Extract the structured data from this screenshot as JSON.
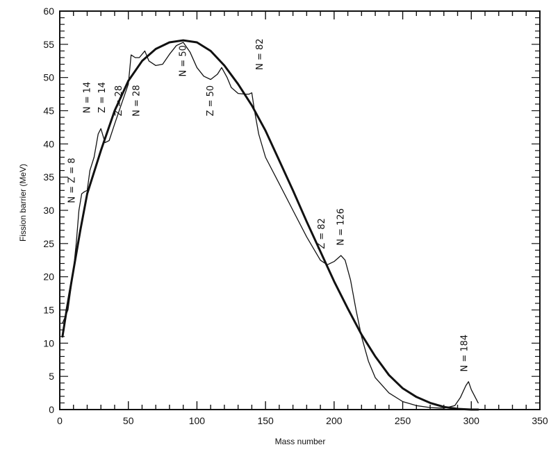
{
  "chart_data": {
    "type": "line",
    "xlabel": "Mass number",
    "ylabel": "Fission barrier (MeV)",
    "xlim": [
      0,
      350
    ],
    "ylim": [
      0,
      60
    ],
    "x_ticks": [
      0,
      50,
      100,
      150,
      200,
      250,
      300,
      350
    ],
    "y_ticks": [
      0,
      5,
      10,
      15,
      20,
      25,
      30,
      35,
      40,
      45,
      50,
      55,
      60
    ],
    "grid": false,
    "series": [
      {
        "style": "thick",
        "x": [
          2,
          5,
          10,
          15,
          20,
          30,
          40,
          50,
          60,
          70,
          80,
          90,
          100,
          110,
          120,
          130,
          140,
          150,
          160,
          170,
          180,
          190,
          200,
          210,
          220,
          230,
          240,
          250,
          260,
          270,
          280,
          290,
          300,
          305
        ],
        "y": [
          11,
          15,
          21,
          27,
          32.5,
          39,
          45,
          49.5,
          52.5,
          54.3,
          55.3,
          55.6,
          55.3,
          54,
          51.8,
          49,
          45.8,
          42,
          37.5,
          33,
          28.3,
          23.8,
          19.3,
          15.2,
          11.3,
          8,
          5.2,
          3.2,
          1.9,
          1,
          0.4,
          0.1,
          0,
          0
        ]
      },
      {
        "style": "thin",
        "x": [
          2,
          4,
          6,
          8,
          10,
          12,
          14,
          16,
          18,
          20,
          22,
          25,
          28,
          30,
          33,
          36,
          40,
          45,
          50,
          52,
          55,
          58,
          62,
          65,
          70,
          75,
          80,
          85,
          90,
          95,
          100,
          105,
          110,
          115,
          118,
          122,
          125,
          130,
          135,
          138,
          140,
          142,
          145,
          150,
          160,
          170,
          180,
          190,
          195,
          200,
          205,
          208,
          212,
          216,
          220,
          225,
          230,
          240,
          250,
          260,
          270,
          280,
          288,
          292,
          296,
          298,
          300,
          305
        ],
        "y": [
          13,
          14,
          15,
          18,
          21,
          25,
          30,
          32.5,
          32.8,
          33,
          36,
          38,
          41.5,
          42.3,
          40.2,
          40.5,
          43,
          46,
          49,
          53.4,
          53,
          53,
          54,
          52.5,
          51.8,
          52,
          53.5,
          54.8,
          55.3,
          53.8,
          51.5,
          50.2,
          49.7,
          50.5,
          51.5,
          50,
          48.5,
          47.6,
          47.5,
          47.5,
          47.7,
          45,
          41.5,
          38,
          34,
          30,
          26,
          22.5,
          21.8,
          22.3,
          23.2,
          22.5,
          19.5,
          15,
          11,
          7.3,
          4.8,
          2.5,
          1.2,
          0.6,
          0.3,
          0.2,
          0.6,
          1.8,
          3.6,
          4.2,
          3,
          1
        ]
      }
    ],
    "annotations": [
      {
        "text": "N = Z = 8",
        "x": 11,
        "y": 34.5,
        "rotation": -90
      },
      {
        "text": "N = 14",
        "x": 22,
        "y": 47,
        "rotation": -90
      },
      {
        "text": "Z = 14",
        "x": 33,
        "y": 47,
        "rotation": -90
      },
      {
        "text": "Z = 28",
        "x": 45,
        "y": 46.5,
        "rotation": -90
      },
      {
        "text": "N = 28",
        "x": 58,
        "y": 46.5,
        "rotation": -90
      },
      {
        "text": "N = 50",
        "x": 92,
        "y": 52.5,
        "rotation": -90
      },
      {
        "text": "Z = 50",
        "x": 112,
        "y": 46.5,
        "rotation": -90
      },
      {
        "text": "N = 82",
        "x": 148,
        "y": 53.5,
        "rotation": -90
      },
      {
        "text": "Z = 82",
        "x": 193,
        "y": 26.5,
        "rotation": -90
      },
      {
        "text": "N = 126",
        "x": 207,
        "y": 27.5,
        "rotation": -90
      },
      {
        "text": "N = 184",
        "x": 297,
        "y": 8.5,
        "rotation": -90
      }
    ]
  }
}
